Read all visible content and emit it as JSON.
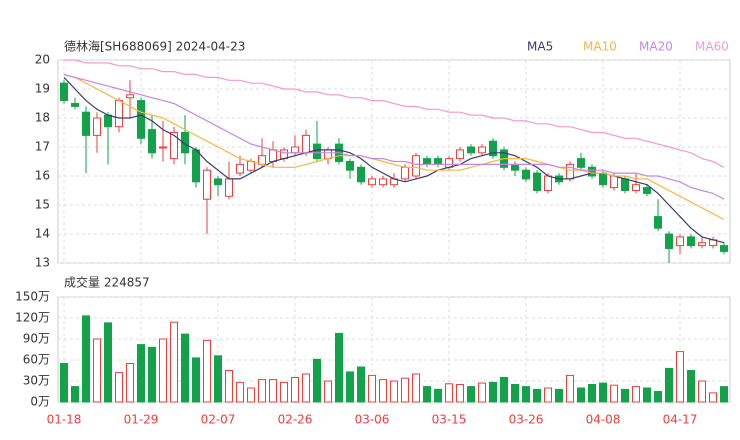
{
  "chart_data": [
    {
      "type": "candlestick",
      "title": "德林海[SH688069] 2024-04-23",
      "categories": [
        "01-18",
        null,
        null,
        null,
        null,
        null,
        null,
        "01-29",
        null,
        null,
        null,
        null,
        null,
        null,
        "02-07",
        null,
        null,
        null,
        null,
        null,
        null,
        "02-26",
        null,
        null,
        null,
        null,
        null,
        null,
        "03-06",
        null,
        null,
        null,
        null,
        null,
        null,
        "03-15",
        null,
        null,
        null,
        null,
        null,
        null,
        "03-26",
        null,
        null,
        null,
        null,
        null,
        null,
        "04-08",
        null,
        null,
        null,
        null,
        null,
        null,
        "04-17",
        null,
        null,
        null,
        null
      ],
      "open": [
        19.2,
        18.5,
        18.2,
        17.4,
        18.1,
        17.7,
        18.7,
        18.6,
        17.6,
        17.0,
        16.6,
        17.5,
        16.9,
        15.2,
        15.9,
        15.3,
        16.1,
        16.2,
        16.4,
        16.5,
        16.6,
        16.8,
        16.8,
        17.1,
        16.6,
        17.1,
        16.5,
        16.3,
        15.7,
        15.7,
        15.7,
        15.9,
        16.0,
        16.6,
        16.6,
        16.3,
        16.6,
        17.0,
        16.8,
        17.2,
        16.9,
        16.4,
        16.2,
        16.1,
        15.5,
        16.0,
        15.9,
        16.6,
        16.3,
        16.1,
        15.6,
        15.9,
        15.5,
        15.6,
        14.6,
        14.0,
        13.6,
        13.9,
        13.6,
        13.6,
        13.6
      ],
      "close": [
        18.6,
        18.4,
        17.4,
        18.0,
        17.7,
        18.6,
        18.8,
        17.3,
        16.8,
        17.0,
        17.5,
        16.8,
        15.8,
        16.2,
        15.7,
        15.9,
        16.4,
        16.5,
        16.7,
        16.9,
        16.9,
        17.0,
        17.4,
        16.6,
        16.9,
        16.5,
        16.2,
        15.8,
        15.9,
        15.9,
        15.9,
        16.3,
        16.7,
        16.4,
        16.4,
        16.6,
        16.9,
        16.8,
        17.0,
        16.7,
        16.3,
        16.2,
        15.9,
        15.5,
        16.0,
        15.8,
        16.4,
        16.3,
        16.0,
        15.7,
        16.0,
        15.5,
        15.7,
        15.4,
        14.2,
        13.5,
        13.9,
        13.6,
        13.7,
        13.8,
        13.4
      ],
      "high": [
        19.3,
        18.7,
        18.4,
        18.2,
        18.2,
        18.7,
        19.3,
        18.7,
        18.1,
        17.9,
        17.7,
        18.1,
        17.0,
        16.3,
        16.0,
        16.5,
        16.7,
        16.6,
        17.3,
        17.2,
        17.0,
        17.4,
        17.6,
        17.9,
        17.0,
        17.3,
        16.6,
        16.4,
        16.0,
        16.0,
        16.1,
        16.4,
        16.8,
        16.7,
        16.7,
        16.7,
        17.0,
        17.1,
        17.1,
        17.3,
        17.0,
        16.5,
        16.3,
        16.2,
        16.1,
        16.1,
        16.5,
        16.8,
        16.4,
        16.2,
        16.1,
        16.0,
        16.1,
        15.7,
        15.2,
        14.1,
        14.0,
        14.0,
        13.9,
        13.9,
        13.7
      ],
      "low": [
        18.5,
        18.3,
        16.1,
        16.8,
        16.4,
        17.5,
        18.0,
        17.1,
        16.6,
        16.5,
        16.4,
        16.4,
        15.6,
        14.0,
        15.3,
        15.2,
        16.0,
        16.1,
        16.3,
        16.3,
        16.5,
        16.7,
        16.7,
        16.5,
        16.4,
        16.4,
        15.9,
        15.7,
        15.6,
        15.6,
        15.6,
        15.8,
        15.9,
        16.3,
        16.3,
        16.2,
        16.5,
        16.7,
        16.7,
        16.6,
        16.2,
        16.0,
        15.8,
        15.4,
        15.4,
        15.7,
        15.8,
        16.2,
        15.9,
        15.6,
        15.5,
        15.4,
        15.4,
        15.3,
        14.1,
        13.0,
        13.3,
        13.5,
        13.5,
        13.5,
        13.3
      ],
      "up_color": "#e8413c",
      "down_color": "#13a24a",
      "series": [
        {
          "name": "MA5",
          "color": "#3a3a6e",
          "values": [
            19.4,
            19.0,
            18.6,
            18.3,
            18.1,
            18.0,
            18.0,
            18.1,
            17.9,
            17.6,
            17.4,
            17.1,
            16.9,
            16.5,
            16.2,
            15.9,
            15.9,
            16.1,
            16.3,
            16.5,
            16.6,
            16.7,
            16.8,
            16.9,
            16.9,
            16.9,
            16.8,
            16.6,
            16.3,
            16.1,
            15.9,
            15.8,
            15.9,
            16.0,
            16.2,
            16.3,
            16.4,
            16.6,
            16.7,
            16.8,
            16.8,
            16.7,
            16.5,
            16.3,
            16.0,
            15.9,
            15.9,
            16.0,
            16.1,
            16.1,
            16.0,
            15.9,
            15.8,
            15.7,
            15.4,
            15.0,
            14.6,
            14.2,
            13.9,
            13.8,
            13.7
          ]
        },
        {
          "name": "MA10",
          "color": "#f2b844",
          "values": [
            19.5,
            19.4,
            19.2,
            19.0,
            18.8,
            18.6,
            18.4,
            18.2,
            18.1,
            18.0,
            17.8,
            17.6,
            17.4,
            17.2,
            17.0,
            16.8,
            16.6,
            16.5,
            16.4,
            16.3,
            16.3,
            16.3,
            16.4,
            16.5,
            16.6,
            16.7,
            16.7,
            16.7,
            16.6,
            16.5,
            16.4,
            16.3,
            16.3,
            16.2,
            16.2,
            16.2,
            16.2,
            16.3,
            16.4,
            16.5,
            16.6,
            16.6,
            16.6,
            16.5,
            16.4,
            16.3,
            16.2,
            16.2,
            16.1,
            16.1,
            16.0,
            16.0,
            15.9,
            15.9,
            15.7,
            15.5,
            15.3,
            15.1,
            14.9,
            14.7,
            14.5
          ]
        },
        {
          "name": "MA20",
          "color": "#c586e0",
          "values": [
            19.5,
            19.4,
            19.3,
            19.2,
            19.1,
            19.0,
            18.9,
            18.8,
            18.7,
            18.6,
            18.5,
            18.3,
            18.1,
            17.9,
            17.7,
            17.5,
            17.3,
            17.1,
            17.0,
            16.9,
            16.8,
            16.8,
            16.8,
            16.8,
            16.8,
            16.8,
            16.7,
            16.7,
            16.6,
            16.6,
            16.5,
            16.5,
            16.4,
            16.4,
            16.4,
            16.4,
            16.4,
            16.4,
            16.4,
            16.4,
            16.4,
            16.4,
            16.4,
            16.4,
            16.4,
            16.3,
            16.3,
            16.2,
            16.2,
            16.2,
            16.1,
            16.1,
            16.1,
            16.0,
            16.0,
            15.9,
            15.8,
            15.6,
            15.5,
            15.4,
            15.2
          ]
        },
        {
          "name": "MA60",
          "color": "#f39ac6",
          "values": [
            20.0,
            20.0,
            19.9,
            19.9,
            19.9,
            19.8,
            19.8,
            19.7,
            19.7,
            19.6,
            19.6,
            19.5,
            19.5,
            19.4,
            19.4,
            19.3,
            19.3,
            19.2,
            19.2,
            19.1,
            19.0,
            19.0,
            18.9,
            18.9,
            18.8,
            18.8,
            18.7,
            18.7,
            18.6,
            18.6,
            18.5,
            18.4,
            18.4,
            18.3,
            18.3,
            18.2,
            18.2,
            18.1,
            18.1,
            18.0,
            18.0,
            17.9,
            17.9,
            17.8,
            17.8,
            17.7,
            17.7,
            17.6,
            17.5,
            17.5,
            17.4,
            17.3,
            17.3,
            17.2,
            17.1,
            17.0,
            16.9,
            16.8,
            16.6,
            16.5,
            16.3
          ]
        }
      ],
      "ylim": [
        13,
        20
      ],
      "yticks": [
        13,
        14,
        15,
        16,
        17,
        18,
        19,
        20
      ],
      "grid": true
    },
    {
      "type": "bar",
      "title": "成交量 224857",
      "values": [
        55,
        22,
        123,
        90,
        113,
        42,
        55,
        82,
        78,
        90,
        114,
        97,
        63,
        88,
        66,
        45,
        28,
        20,
        32,
        32,
        28,
        35,
        40,
        61,
        30,
        98,
        43,
        50,
        38,
        32,
        30,
        34,
        40,
        22,
        18,
        26,
        25,
        22,
        27,
        28,
        35,
        25,
        22,
        18,
        20,
        18,
        38,
        20,
        25,
        27,
        24,
        18,
        22,
        20,
        15,
        48,
        72,
        45,
        30,
        13,
        22
      ],
      "ylim": [
        0,
        150
      ],
      "yticks": [
        {
          "value": 0,
          "label": "0万"
        },
        {
          "value": 30,
          "label": "30万"
        },
        {
          "value": 60,
          "label": "60万"
        },
        {
          "value": 90,
          "label": "90万"
        },
        {
          "value": 120,
          "label": "120万"
        },
        {
          "value": 150,
          "label": "150万"
        }
      ],
      "grid": true
    }
  ]
}
